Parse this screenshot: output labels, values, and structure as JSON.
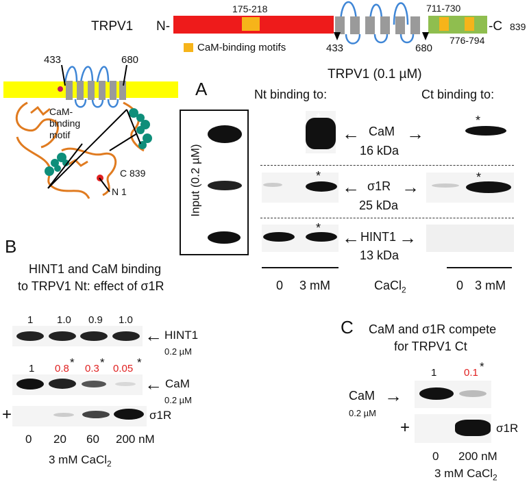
{
  "domain_map": {
    "protein": "TRPV1",
    "n_term": "N-",
    "c_term": "-C",
    "length": "839",
    "motif1": "175-218",
    "motif2": "711-730",
    "motif3": "776-794",
    "pos433": "433",
    "pos680": "680",
    "legend": "CaM-binding motifs",
    "colors": {
      "nt": "#ee1b1b",
      "ct": "#8fbe4f",
      "motif": "#f6b41a",
      "tm": "#9a9a9a",
      "loop": "#3f86d6",
      "membrane": "#ffff00"
    }
  },
  "structure": {
    "label433": "433",
    "label680": "680",
    "cam_motif": "CaM-\nbinding\nmotif",
    "c839": "C 839",
    "n1": "N 1"
  },
  "panelA": {
    "letter": "A",
    "title": "TRPV1 (0.1 µM)",
    "nt_label": "Nt binding to:",
    "ct_label": "Ct binding to:",
    "input_label": "Input (0.2 µM)",
    "cam": "CaM",
    "cam_kda": "16 kDa",
    "s1r": "σ1R",
    "s1r_kda": "25 kDa",
    "hint": "HINT1",
    "hint_kda": "13 kDa",
    "x0": "0",
    "x3": "3 mM",
    "cacl": "CaCl",
    "sub2": "2",
    "x0b": "0",
    "x3b": "3 mM",
    "star": "*"
  },
  "panelB": {
    "letter": "B",
    "title1": "HINT1 and CaM binding",
    "title2": "to TRPV1 Nt: effect of σ1R",
    "hint_vals": [
      "1",
      "1.0",
      "0.9",
      "1.0"
    ],
    "cam_vals": [
      "1",
      "0.8",
      "0.3",
      "0.05"
    ],
    "hint": "HINT1",
    "hint_conc": "0.2 µM",
    "cam": "CaM",
    "cam_conc": "0.2 µM",
    "s1r": "σ1R",
    "plus": "+",
    "x": [
      "0",
      "20",
      "60",
      "200 nM"
    ],
    "cacl": "3 mM CaCl",
    "sub2": "2",
    "star": "*"
  },
  "panelC": {
    "letter": "C",
    "title1": "CaM and σ1R compete",
    "title2": "for TRPV1 Ct",
    "vals": [
      "1",
      "0.1"
    ],
    "cam": "CaM",
    "cam_conc": "0.2 µM",
    "s1r": "σ1R",
    "plus": "+",
    "x": [
      "0",
      "200 nM"
    ],
    "cacl": "3 mM CaCl",
    "sub2": "2",
    "star": "*"
  }
}
